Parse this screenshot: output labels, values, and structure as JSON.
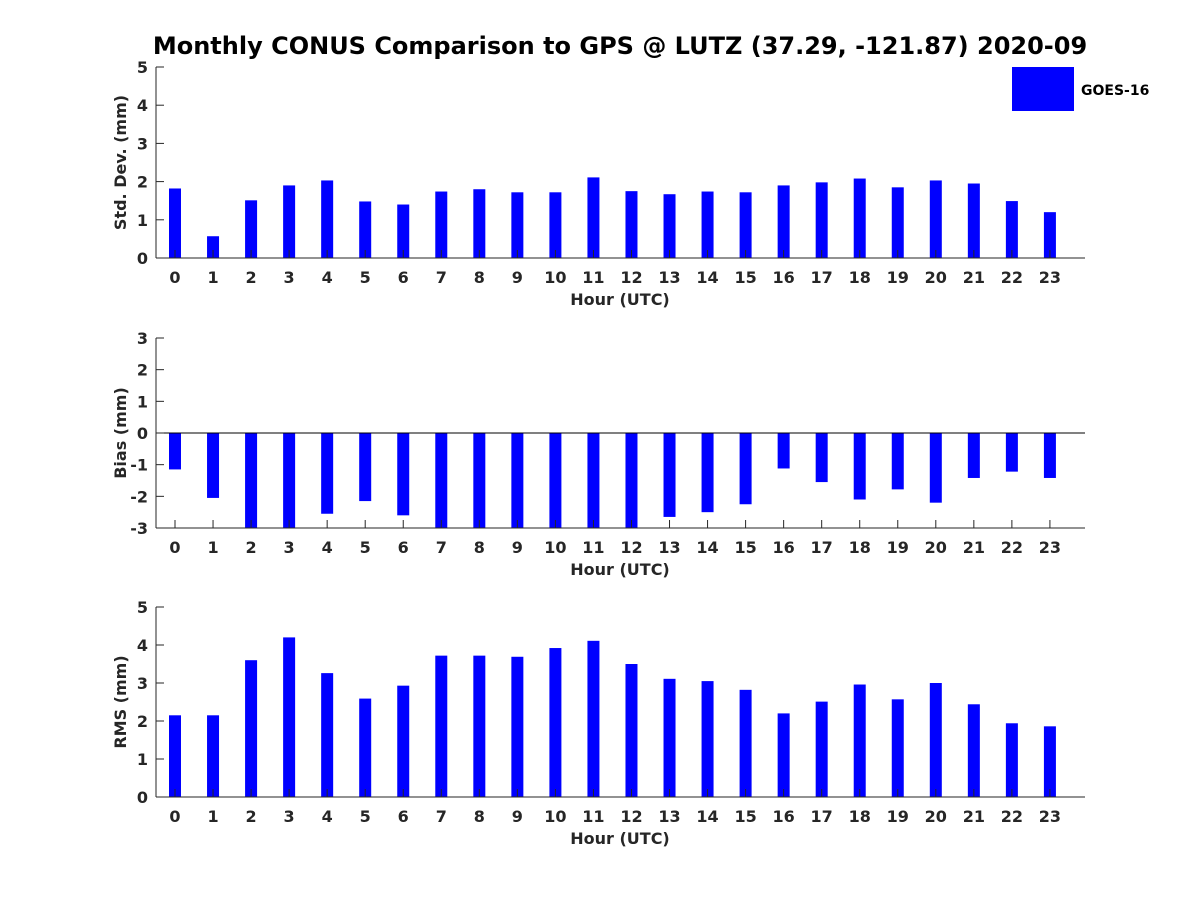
{
  "title": "Monthly CONUS Comparison to GPS @ LUTZ (37.29, -121.87) 2020-09",
  "legend": {
    "label": "GOES-16",
    "color": "#0000ff",
    "placement": "top-right"
  },
  "chart_data": [
    {
      "type": "bar",
      "xlabel": "Hour (UTC)",
      "ylabel": "Std. Dev. (mm)",
      "ylim": [
        0,
        5
      ],
      "yticks": [
        0,
        1,
        2,
        3,
        4,
        5
      ],
      "categories": [
        "0",
        "1",
        "2",
        "3",
        "4",
        "5",
        "6",
        "7",
        "8",
        "9",
        "10",
        "11",
        "12",
        "13",
        "14",
        "15",
        "16",
        "17",
        "18",
        "19",
        "20",
        "21",
        "22",
        "23"
      ],
      "series": [
        {
          "name": "GOES-16",
          "color": "#0000ff",
          "values": [
            1.82,
            0.57,
            1.51,
            1.9,
            2.03,
            1.48,
            1.4,
            1.74,
            1.8,
            1.72,
            1.72,
            2.11,
            1.75,
            1.67,
            1.74,
            1.72,
            1.9,
            1.98,
            2.08,
            1.85,
            2.03,
            1.95,
            1.49,
            1.2
          ]
        }
      ]
    },
    {
      "type": "bar",
      "xlabel": "Hour (UTC)",
      "ylabel": "Bias (mm)",
      "ylim": [
        -3,
        3
      ],
      "yticks": [
        -3,
        -2,
        -1,
        0,
        1,
        2,
        3
      ],
      "categories": [
        "0",
        "1",
        "2",
        "3",
        "4",
        "5",
        "6",
        "7",
        "8",
        "9",
        "10",
        "11",
        "12",
        "13",
        "14",
        "15",
        "16",
        "17",
        "18",
        "19",
        "20",
        "21",
        "22",
        "23"
      ],
      "series": [
        {
          "name": "GOES-16",
          "color": "#0000ff",
          "values": [
            -1.15,
            -2.05,
            -3.0,
            -3.0,
            -2.55,
            -2.15,
            -2.6,
            -3.0,
            -3.0,
            -3.0,
            -3.0,
            -3.0,
            -3.0,
            -2.65,
            -2.5,
            -2.25,
            -1.12,
            -1.55,
            -2.1,
            -1.78,
            -2.2,
            -1.42,
            -1.22,
            -1.42
          ]
        }
      ]
    },
    {
      "type": "bar",
      "xlabel": "Hour (UTC)",
      "ylabel": "RMS (mm)",
      "ylim": [
        0,
        5
      ],
      "yticks": [
        0,
        1,
        2,
        3,
        4,
        5
      ],
      "categories": [
        "0",
        "1",
        "2",
        "3",
        "4",
        "5",
        "6",
        "7",
        "8",
        "9",
        "10",
        "11",
        "12",
        "13",
        "14",
        "15",
        "16",
        "17",
        "18",
        "19",
        "20",
        "21",
        "22",
        "23"
      ],
      "series": [
        {
          "name": "GOES-16",
          "color": "#0000ff",
          "values": [
            2.15,
            2.15,
            3.6,
            4.2,
            3.26,
            2.59,
            2.93,
            3.72,
            3.72,
            3.69,
            3.92,
            4.11,
            3.5,
            3.11,
            3.05,
            2.82,
            2.2,
            2.51,
            2.96,
            2.57,
            3.0,
            2.44,
            1.94,
            1.86
          ]
        }
      ]
    }
  ]
}
